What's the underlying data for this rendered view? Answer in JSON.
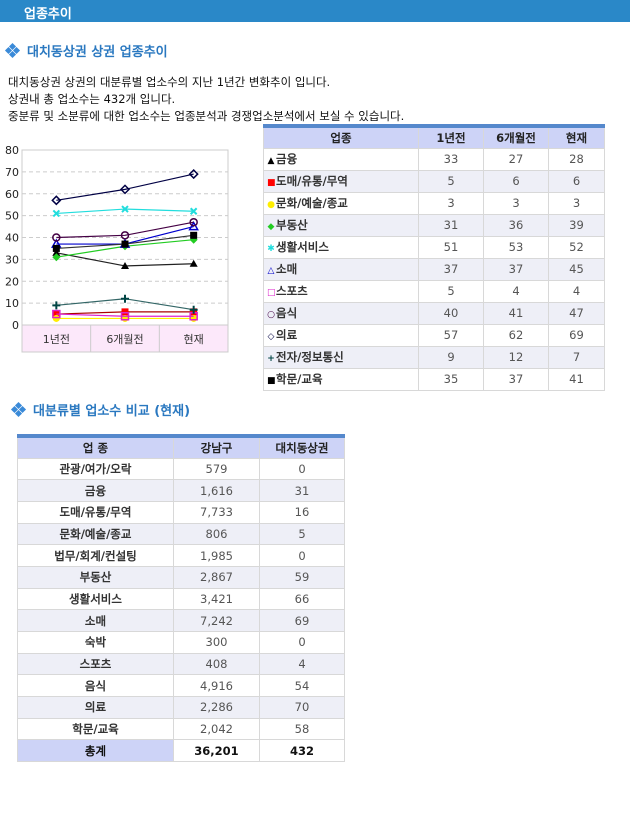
{
  "header": {
    "title": "업종추이"
  },
  "section1": {
    "title": "대치동상권 상권 업종추이",
    "desc": [
      "대치동상권 상권의 대분류별 업소수의 지난 1년간 변화추이 입니다.",
      "상권내 총 업소수는 432개 입니다.",
      "중분류 및 소분류에 대한 업소수는 업종분석과 경쟁업소분석에서 보실 수 있습니다."
    ]
  },
  "trend_table": {
    "headers": [
      "업종",
      "1년전",
      "6개월전",
      "현재"
    ],
    "rows": [
      {
        "name": "금융",
        "marker": "▲",
        "color": "#000000",
        "values": [
          "33",
          "27",
          "28"
        ]
      },
      {
        "name": "도매/유통/무역",
        "marker": "■",
        "color": "#ff0000",
        "values": [
          "5",
          "6",
          "6"
        ]
      },
      {
        "name": "문화/예술/종교",
        "marker": "●",
        "color": "#ffee00",
        "values": [
          "3",
          "3",
          "3"
        ]
      },
      {
        "name": "부동산",
        "marker": "◆",
        "color": "#22cc22",
        "values": [
          "31",
          "36",
          "39"
        ]
      },
      {
        "name": "생활서비스",
        "marker": "✱",
        "color": "#22dddd",
        "values": [
          "51",
          "53",
          "52"
        ]
      },
      {
        "name": "소매",
        "marker": "△",
        "color": "#0000cc",
        "values": [
          "37",
          "37",
          "45"
        ]
      },
      {
        "name": "스포츠",
        "marker": "□",
        "color": "#dd22cc",
        "values": [
          "5",
          "4",
          "4"
        ]
      },
      {
        "name": "음식",
        "marker": "○",
        "color": "#440044",
        "values": [
          "40",
          "41",
          "47"
        ]
      },
      {
        "name": "의료",
        "marker": "◇",
        "color": "#000044",
        "values": [
          "57",
          "62",
          "69"
        ]
      },
      {
        "name": "전자/정보통신",
        "marker": "+",
        "color": "#004444",
        "values": [
          "9",
          "12",
          "7"
        ]
      },
      {
        "name": "학문/교육",
        "marker": "■",
        "color": "#000000",
        "values": [
          "35",
          "37",
          "41"
        ]
      }
    ]
  },
  "chart_data": {
    "type": "line",
    "categories": [
      "1년전",
      "6개월전",
      "현재"
    ],
    "ylim": [
      0,
      80
    ],
    "yticks": [
      "0",
      "10",
      "20",
      "30",
      "40",
      "50",
      "60",
      "70",
      "80"
    ],
    "grid": true,
    "series": [
      {
        "name": "금융",
        "values": [
          33,
          27,
          28
        ],
        "color": "#000000",
        "line": "#222222",
        "marker": "triangle"
      },
      {
        "name": "도매/유통/무역",
        "values": [
          5,
          6,
          6
        ],
        "color": "#ff0000",
        "line": "#aa0000",
        "marker": "square"
      },
      {
        "name": "문화/예술/종교",
        "values": [
          3,
          3,
          3
        ],
        "color": "#ffee00",
        "line": "#ffee00",
        "marker": "circle"
      },
      {
        "name": "부동산",
        "values": [
          31,
          36,
          39
        ],
        "color": "#22cc22",
        "line": "#22cc22",
        "marker": "diamond"
      },
      {
        "name": "생활서비스",
        "values": [
          51,
          53,
          52
        ],
        "color": "#22dddd",
        "line": "#22dddd",
        "marker": "x"
      },
      {
        "name": "소매",
        "values": [
          37,
          37,
          45
        ],
        "color": "#0000cc",
        "line": "#0000cc",
        "marker": "triangle-open"
      },
      {
        "name": "스포츠",
        "values": [
          5,
          4,
          4
        ],
        "color": "#dd22cc",
        "line": "#dd22cc",
        "marker": "square-open"
      },
      {
        "name": "음식",
        "values": [
          40,
          41,
          47
        ],
        "color": "#440044",
        "line": "#440044",
        "marker": "circle-open"
      },
      {
        "name": "의료",
        "values": [
          57,
          62,
          69
        ],
        "color": "#000044",
        "line": "#000044",
        "marker": "diamond-open"
      },
      {
        "name": "전자/정보통신",
        "values": [
          9,
          12,
          7
        ],
        "color": "#004444",
        "line": "#336666",
        "marker": "plus"
      },
      {
        "name": "학문/교육",
        "values": [
          35,
          37,
          41
        ],
        "color": "#000000",
        "line": "#333333",
        "marker": "square"
      }
    ]
  },
  "section2": {
    "title": "대분류별 업소수 비교 (현재)"
  },
  "compare_table": {
    "headers": [
      "업 종",
      "강남구",
      "대치동상권"
    ],
    "rows": [
      [
        "관광/여가/오락",
        "579",
        "0"
      ],
      [
        "금융",
        "1,616",
        "31"
      ],
      [
        "도매/유통/무역",
        "7,733",
        "16"
      ],
      [
        "문화/예술/종교",
        "806",
        "5"
      ],
      [
        "법무/회계/컨설팅",
        "1,985",
        "0"
      ],
      [
        "부동산",
        "2,867",
        "59"
      ],
      [
        "생활서비스",
        "3,421",
        "66"
      ],
      [
        "소매",
        "7,242",
        "69"
      ],
      [
        "숙박",
        "300",
        "0"
      ],
      [
        "스포츠",
        "408",
        "4"
      ],
      [
        "음식",
        "4,916",
        "54"
      ],
      [
        "의료",
        "2,286",
        "70"
      ],
      [
        "학문/교육",
        "2,042",
        "58"
      ]
    ],
    "total": [
      "총계",
      "36,201",
      "432"
    ]
  }
}
